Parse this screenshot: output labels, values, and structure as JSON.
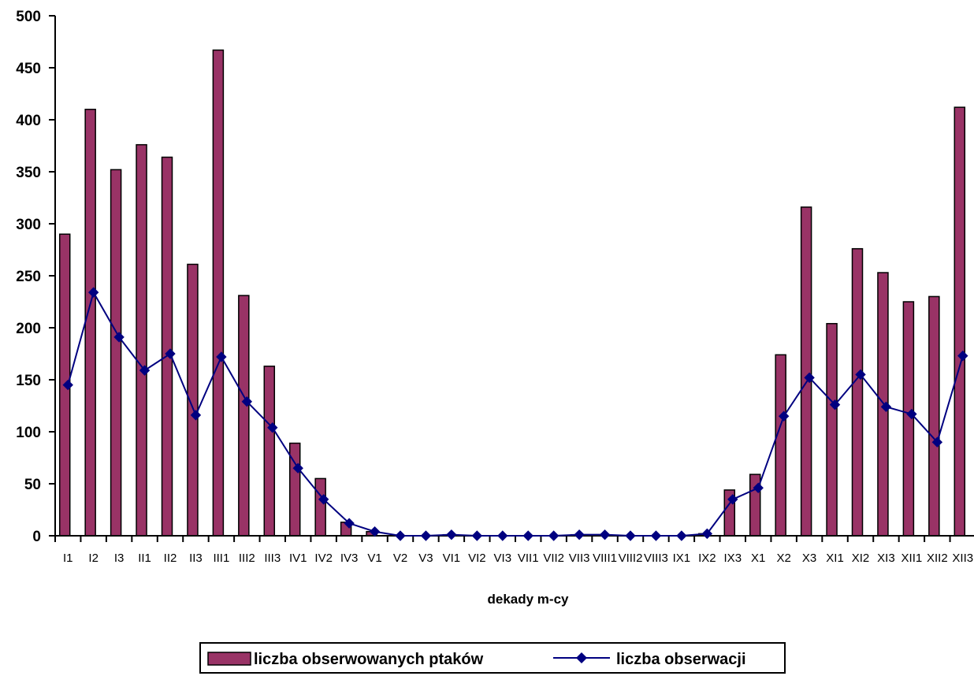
{
  "chart_data": {
    "type": "bar+line",
    "categories": [
      "I1",
      "I2",
      "I3",
      "II1",
      "II2",
      "II3",
      "III1",
      "III2",
      "III3",
      "IV1",
      "IV2",
      "IV3",
      "V1",
      "V2",
      "V3",
      "VI1",
      "VI2",
      "VI3",
      "VII1",
      "VII2",
      "VII3",
      "VIII1",
      "VIII2",
      "VIII3",
      "IX1",
      "IX2",
      "IX3",
      "X1",
      "X2",
      "X3",
      "XI1",
      "XI2",
      "XI3",
      "XII1",
      "XII2",
      "XII3"
    ],
    "series": [
      {
        "name": "liczba obserwowanych ptaków",
        "type": "bar",
        "color": "#993366",
        "values": [
          290,
          410,
          352,
          376,
          364,
          261,
          467,
          231,
          163,
          89,
          55,
          13,
          4,
          0,
          0,
          1,
          0,
          0,
          0,
          0,
          1,
          1,
          0,
          0,
          0,
          2,
          44,
          59,
          174,
          316,
          204,
          276,
          253,
          225,
          230,
          412
        ]
      },
      {
        "name": "liczba obserwacji",
        "type": "line",
        "marker": "diamond",
        "color": "#000080",
        "values": [
          145,
          234,
          191,
          159,
          175,
          116,
          172,
          129,
          104,
          65,
          35,
          12,
          4,
          0,
          0,
          1,
          0,
          0,
          0,
          0,
          1,
          1,
          0,
          0,
          0,
          2,
          35,
          46,
          115,
          152,
          126,
          155,
          124,
          117,
          90,
          173
        ]
      }
    ],
    "xlabel": "dekady m-cy",
    "ylabel": "",
    "ylim": [
      0,
      500
    ],
    "yticks": [
      "0",
      "50",
      "100",
      "150",
      "200",
      "250",
      "300",
      "350",
      "400",
      "450",
      "500"
    ],
    "grid": false,
    "legend_position": "bottom"
  }
}
